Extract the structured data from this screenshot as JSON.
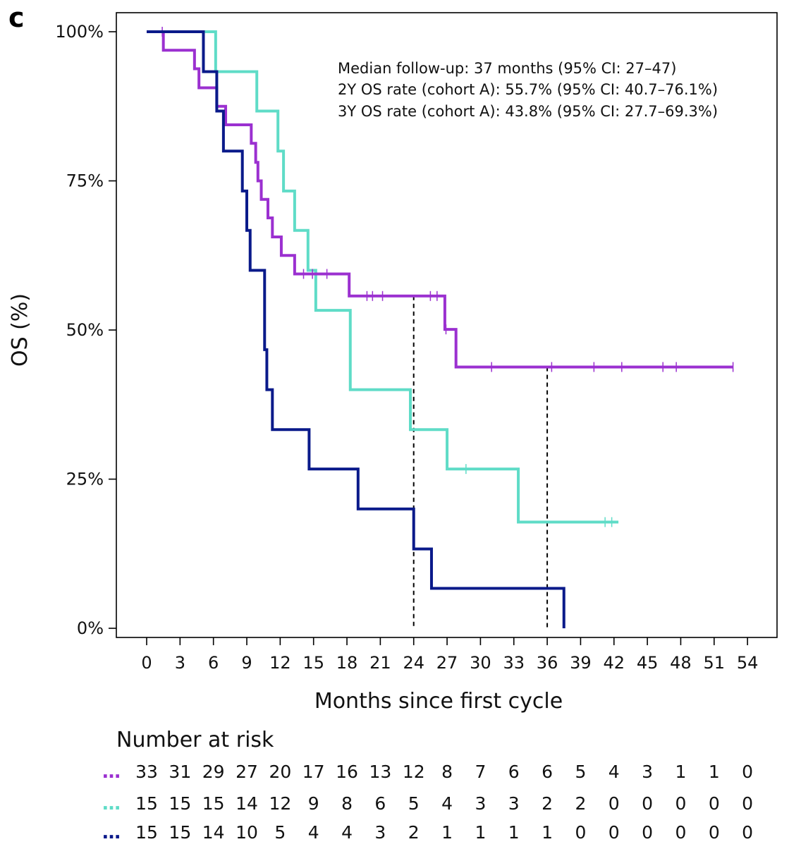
{
  "panel_label": "c",
  "chart_data": {
    "type": "line",
    "ylabel": "OS (%)",
    "xlabel": "Months since first cycle",
    "xlim": [
      0,
      55
    ],
    "ylim": [
      0,
      100
    ],
    "x_ticks": [
      0,
      3,
      6,
      9,
      12,
      15,
      18,
      21,
      24,
      27,
      30,
      33,
      36,
      39,
      42,
      45,
      48,
      51,
      54
    ],
    "y_ticks": [
      0,
      25,
      50,
      75,
      100
    ],
    "y_tick_labels": [
      "0%",
      "25%",
      "50%",
      "75%",
      "100%"
    ],
    "grid": false,
    "annotations": [
      "Median follow-up: 37 months (95% CI: 27–47)",
      "2Y OS rate (cohort A): 55.7% (95% CI: 40.7–76.1%)",
      "3Y OS rate (cohort A): 43.8% (95% CI: 27.7–69.3%)"
    ],
    "reference_lines_x": [
      24,
      36
    ],
    "series": [
      {
        "color": "#9b30d0",
        "steps": [
          [
            0,
            100
          ],
          [
            1.5,
            96.9
          ],
          [
            4.3,
            93.8
          ],
          [
            4.7,
            90.6
          ],
          [
            6.3,
            87.5
          ],
          [
            7.1,
            84.4
          ],
          [
            9.4,
            81.3
          ],
          [
            9.8,
            78.1
          ],
          [
            10.0,
            75.0
          ],
          [
            10.3,
            71.9
          ],
          [
            10.9,
            68.8
          ],
          [
            11.3,
            65.6
          ],
          [
            12.1,
            62.5
          ],
          [
            13.3,
            59.4
          ],
          [
            18.2,
            55.7
          ],
          [
            26.8,
            50.1
          ],
          [
            27.8,
            43.8
          ],
          [
            52.7,
            43.8
          ]
        ],
        "censored": [
          [
            1.4,
            100
          ],
          [
            14.1,
            59.4
          ],
          [
            14.9,
            59.4
          ],
          [
            16.2,
            59.4
          ],
          [
            19.8,
            55.7
          ],
          [
            20.3,
            55.7
          ],
          [
            21.2,
            55.7
          ],
          [
            25.5,
            55.7
          ],
          [
            26.1,
            55.7
          ],
          [
            26.9,
            50.1
          ],
          [
            31.0,
            43.8
          ],
          [
            36.4,
            43.8
          ],
          [
            40.2,
            43.8
          ],
          [
            42.7,
            43.8
          ],
          [
            46.4,
            43.8
          ],
          [
            47.6,
            43.8
          ],
          [
            52.7,
            43.8
          ]
        ]
      },
      {
        "color": "#5fdcc7",
        "steps": [
          [
            0,
            100
          ],
          [
            6.2,
            93.3
          ],
          [
            9.9,
            86.7
          ],
          [
            11.8,
            80.0
          ],
          [
            12.3,
            73.3
          ],
          [
            13.3,
            66.7
          ],
          [
            14.5,
            60.0
          ],
          [
            15.2,
            53.3
          ],
          [
            18.3,
            40.0
          ],
          [
            23.7,
            33.3
          ],
          [
            27.0,
            26.7
          ],
          [
            33.4,
            17.8
          ],
          [
            42.4,
            17.8
          ]
        ],
        "censored": [
          [
            28.7,
            26.7
          ],
          [
            41.2,
            17.8
          ],
          [
            41.8,
            17.8
          ]
        ]
      },
      {
        "color": "#0a1a8a",
        "steps": [
          [
            0,
            100
          ],
          [
            5.1,
            93.3
          ],
          [
            6.3,
            86.7
          ],
          [
            6.9,
            80.0
          ],
          [
            8.6,
            73.3
          ],
          [
            9.0,
            66.7
          ],
          [
            9.3,
            60.0
          ],
          [
            10.6,
            46.7
          ],
          [
            10.8,
            40.0
          ],
          [
            11.3,
            33.3
          ],
          [
            14.6,
            26.7
          ],
          [
            19.0,
            20.0
          ],
          [
            24.0,
            13.3
          ],
          [
            25.6,
            6.7
          ],
          [
            37.5,
            6.7
          ],
          [
            37.5,
            0
          ]
        ],
        "censored": []
      }
    ]
  },
  "risk_table": {
    "title": "Number at risk",
    "rows": [
      {
        "color": "#9b30d0",
        "marker": "…",
        "values": [
          "33",
          "31",
          "29",
          "27",
          "20",
          "17",
          "16",
          "13",
          "12",
          "8",
          "7",
          "6",
          "6",
          "5",
          "4",
          "3",
          "1",
          "1",
          "0"
        ]
      },
      {
        "color": "#5fdcc7",
        "marker": "…",
        "values": [
          "15",
          "15",
          "15",
          "14",
          "12",
          "9",
          "8",
          "6",
          "5",
          "4",
          "3",
          "3",
          "2",
          "2",
          "0",
          "0",
          "0",
          "0",
          "0"
        ]
      },
      {
        "color": "#0a1a8a",
        "marker": "…",
        "values": [
          "15",
          "15",
          "14",
          "10",
          "5",
          "4",
          "4",
          "3",
          "2",
          "1",
          "1",
          "1",
          "1",
          "0",
          "0",
          "0",
          "0",
          "0",
          "0"
        ]
      }
    ]
  }
}
